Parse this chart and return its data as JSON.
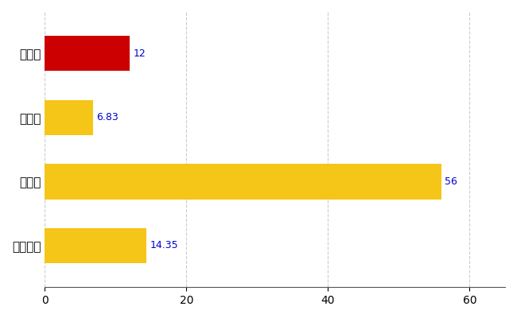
{
  "categories": [
    "橋本市",
    "県平均",
    "県最大",
    "全国平均"
  ],
  "values": [
    12,
    6.83,
    56,
    14.35
  ],
  "bar_colors": [
    "#cc0000",
    "#f5c518",
    "#f5c518",
    "#f5c518"
  ],
  "value_labels": [
    "12",
    "6.83",
    "56",
    "14.35"
  ],
  "value_label_color": "#0000cc",
  "xlim": [
    0,
    65
  ],
  "xticks": [
    0,
    20,
    40,
    60
  ],
  "grid_color": "#cccccc",
  "background_color": "#ffffff",
  "bar_height": 0.55,
  "value_label_fontsize": 9,
  "ylabel_fontsize": 11
}
